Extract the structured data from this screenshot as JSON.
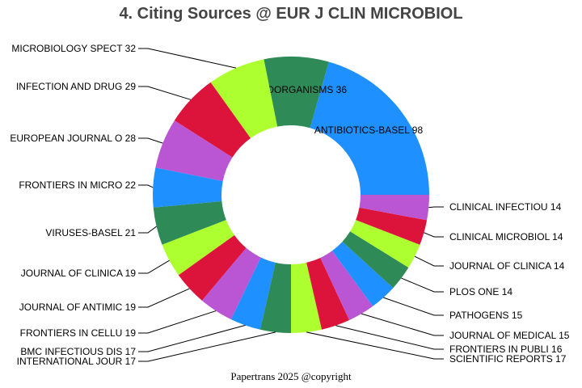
{
  "title": "4. Citing Sources @ EUR J CLIN MICROBIOL",
  "footer": "Papertrans 2025 @copyright",
  "colors": [
    "#1e90ff",
    "#2e8b57",
    "#adff2f",
    "#dc143c",
    "#ba55d3"
  ],
  "chart_data": {
    "type": "pie",
    "variant": "donut",
    "title": "4. Citing Sources @ EUR J CLIN MICROBIOL",
    "categories": [
      "ANTIBIOTICS-BASEL",
      "MICROORGANISMS",
      "MICROBIOLOGY SPECT",
      "INFECTION AND DRUG",
      "EUROPEAN JOURNAL O",
      "FRONTIERS IN MICRO",
      "VIRUSES-BASEL",
      "JOURNAL OF CLINICA",
      "JOURNAL OF ANTIMIC",
      "FRONTIERS IN CELLU",
      "BMC INFECTIOUS DIS",
      "INTERNATIONAL JOUR",
      "SCIENTIFIC REPORTS",
      "FRONTIERS IN PUBLI",
      "JOURNAL OF MEDICAL",
      "PATHOGENS",
      "PLOS ONE",
      "JOURNAL OF CLINICA",
      "CLINICAL MICROBIOL",
      "CLINICAL INFECTIOU"
    ],
    "values": [
      98,
      36,
      32,
      29,
      28,
      22,
      21,
      19,
      19,
      19,
      17,
      17,
      17,
      16,
      15,
      15,
      14,
      14,
      14,
      14
    ],
    "labels": [
      "ANTIBIOTICS-BASEL 98",
      "MICROORGANISMS 36",
      "MICROBIOLOGY SPECT 32",
      "INFECTION AND DRUG 29",
      "EUROPEAN JOURNAL O 28",
      "FRONTIERS IN MICRO 22",
      "VIRUSES-BASEL 21",
      "JOURNAL OF CLINICA 19",
      "JOURNAL OF ANTIMIC 19",
      "FRONTIERS IN CELLU 19",
      "BMC INFECTIOUS DIS 17",
      "INTERNATIONAL JOUR 17",
      "SCIENTIFIC REPORTS 17",
      "FRONTIERS IN PUBLI 16",
      "JOURNAL OF MEDICAL 15",
      "PATHOGENS 15",
      "PLOS ONE 14",
      "JOURNAL OF CLINICA 14",
      "CLINICAL MICROBIOL 14",
      "CLINICAL INFECTIOU 14"
    ],
    "legend": "none (outside labels with leader lines)"
  }
}
